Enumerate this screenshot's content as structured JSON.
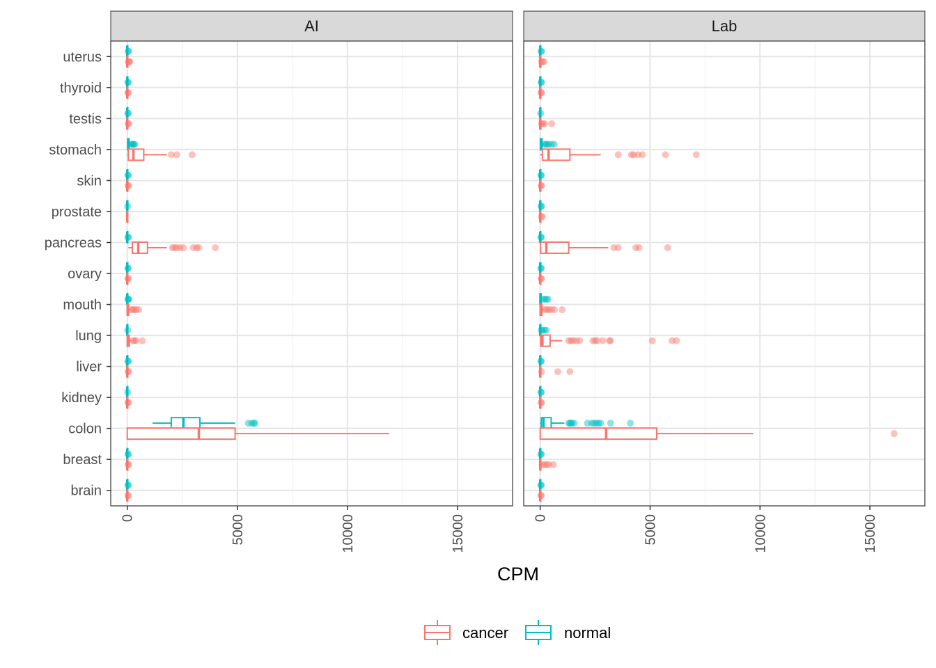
{
  "chart_data": {
    "type": "boxplot",
    "orientation": "horizontal",
    "xlabel": "CPM",
    "xlim": [
      -750,
      17500
    ],
    "x_ticks": [
      0,
      5000,
      10000,
      15000
    ],
    "categories": [
      "uterus",
      "thyroid",
      "testis",
      "stomach",
      "skin",
      "prostate",
      "pancreas",
      "ovary",
      "mouth",
      "lung",
      "liver",
      "kidney",
      "colon",
      "breast",
      "brain"
    ],
    "grid": true,
    "legend_position": "bottom",
    "groups": [
      {
        "name": "cancer",
        "color": "#F8766D"
      },
      {
        "name": "normal",
        "color": "#00BFC4"
      }
    ],
    "panels": [
      {
        "title": "AI",
        "boxes": [
          {
            "category": "uterus",
            "group": "normal",
            "q1": 0,
            "median": 0,
            "q3": 10,
            "whisker_low": 0,
            "whisker_high": 30,
            "outliers": [
              40,
              60
            ]
          },
          {
            "category": "uterus",
            "group": "cancer",
            "q1": 0,
            "median": 0,
            "q3": 15,
            "whisker_low": 0,
            "whisker_high": 40,
            "outliers": [
              50,
              80,
              120
            ]
          },
          {
            "category": "thyroid",
            "group": "normal",
            "q1": 0,
            "median": 0,
            "q3": 10,
            "whisker_low": 0,
            "whisker_high": 20,
            "outliers": [
              30,
              50
            ]
          },
          {
            "category": "thyroid",
            "group": "cancer",
            "q1": 0,
            "median": 0,
            "q3": 10,
            "whisker_low": 0,
            "whisker_high": 20,
            "outliers": [
              30,
              40
            ]
          },
          {
            "category": "testis",
            "group": "normal",
            "q1": 0,
            "median": 0,
            "q3": 10,
            "whisker_low": 0,
            "whisker_high": 20,
            "outliers": [
              30,
              50
            ]
          },
          {
            "category": "testis",
            "group": "cancer",
            "q1": 0,
            "median": 0,
            "q3": 15,
            "whisker_low": 0,
            "whisker_high": 30,
            "outliers": [
              40,
              60
            ]
          },
          {
            "category": "stomach",
            "group": "normal",
            "q1": 20,
            "median": 40,
            "q3": 80,
            "whisker_low": 0,
            "whisker_high": 150,
            "outliers": [
              180,
              220,
              260,
              300,
              340
            ]
          },
          {
            "category": "stomach",
            "group": "cancer",
            "q1": 50,
            "median": 280,
            "q3": 750,
            "whisker_low": 0,
            "whisker_high": 1800,
            "outliers": [
              2000,
              2250,
              2950
            ]
          },
          {
            "category": "skin",
            "group": "normal",
            "q1": 0,
            "median": 0,
            "q3": 10,
            "whisker_low": 0,
            "whisker_high": 20,
            "outliers": [
              30,
              50
            ]
          },
          {
            "category": "skin",
            "group": "cancer",
            "q1": 0,
            "median": 0,
            "q3": 10,
            "whisker_low": 0,
            "whisker_high": 30,
            "outliers": [
              40,
              60
            ]
          },
          {
            "category": "prostate",
            "group": "normal",
            "q1": 0,
            "median": 0,
            "q3": 5,
            "whisker_low": 0,
            "whisker_high": 10,
            "outliers": [
              20
            ]
          },
          {
            "category": "prostate",
            "group": "cancer",
            "q1": 0,
            "median": 0,
            "q3": 5,
            "whisker_low": 0,
            "whisker_high": 10,
            "outliers": []
          },
          {
            "category": "pancreas",
            "group": "normal",
            "q1": 0,
            "median": 0,
            "q3": 10,
            "whisker_low": 0,
            "whisker_high": 20,
            "outliers": [
              30,
              50
            ]
          },
          {
            "category": "pancreas",
            "group": "cancer",
            "q1": 230,
            "median": 500,
            "q3": 920,
            "whisker_low": 50,
            "whisker_high": 1800,
            "outliers": [
              2050,
              2150,
              2250,
              2400,
              2550,
              3000,
              3150,
              3250,
              4000
            ]
          },
          {
            "category": "ovary",
            "group": "normal",
            "q1": 0,
            "median": 0,
            "q3": 10,
            "whisker_low": 0,
            "whisker_high": 20,
            "outliers": [
              30,
              40
            ]
          },
          {
            "category": "ovary",
            "group": "cancer",
            "q1": 0,
            "median": 0,
            "q3": 10,
            "whisker_low": 0,
            "whisker_high": 20,
            "outliers": [
              30,
              50
            ]
          },
          {
            "category": "mouth",
            "group": "normal",
            "q1": 0,
            "median": 0,
            "q3": 10,
            "whisker_low": 0,
            "whisker_high": 20,
            "outliers": [
              30,
              50,
              70
            ]
          },
          {
            "category": "mouth",
            "group": "cancer",
            "q1": 0,
            "median": 20,
            "q3": 60,
            "whisker_low": 0,
            "whisker_high": 150,
            "outliers": [
              180,
              250,
              320,
              400,
              520
            ]
          },
          {
            "category": "lung",
            "group": "normal",
            "q1": 0,
            "median": 0,
            "q3": 5,
            "whisker_low": 0,
            "whisker_high": 10,
            "outliers": [
              20
            ]
          },
          {
            "category": "lung",
            "group": "cancer",
            "q1": 0,
            "median": 30,
            "q3": 90,
            "whisker_low": 0,
            "whisker_high": 200,
            "outliers": [
              250,
              330,
              400,
              680
            ]
          },
          {
            "category": "liver",
            "group": "normal",
            "q1": 0,
            "median": 0,
            "q3": 10,
            "whisker_low": 0,
            "whisker_high": 20,
            "outliers": [
              30,
              50
            ]
          },
          {
            "category": "liver",
            "group": "cancer",
            "q1": 0,
            "median": 0,
            "q3": 10,
            "whisker_low": 0,
            "whisker_high": 30,
            "outliers": [
              40,
              60
            ]
          },
          {
            "category": "kidney",
            "group": "normal",
            "q1": 0,
            "median": 0,
            "q3": 5,
            "whisker_low": 0,
            "whisker_high": 10,
            "outliers": [
              20
            ]
          },
          {
            "category": "kidney",
            "group": "cancer",
            "q1": 0,
            "median": 0,
            "q3": 10,
            "whisker_low": 0,
            "whisker_high": 20,
            "outliers": [
              30,
              50
            ]
          },
          {
            "category": "colon",
            "group": "normal",
            "q1": 2000,
            "median": 2550,
            "q3": 3300,
            "whisker_low": 1150,
            "whisker_high": 4900,
            "outliers": [
              5500,
              5650,
              5750,
              5800
            ]
          },
          {
            "category": "colon",
            "group": "cancer",
            "q1": 0,
            "median": 3250,
            "q3": 4900,
            "whisker_low": 0,
            "whisker_high": 11900,
            "outliers": []
          },
          {
            "category": "breast",
            "group": "normal",
            "q1": 0,
            "median": 0,
            "q3": 10,
            "whisker_low": 0,
            "whisker_high": 20,
            "outliers": [
              30,
              50
            ]
          },
          {
            "category": "breast",
            "group": "cancer",
            "q1": 0,
            "median": 0,
            "q3": 10,
            "whisker_low": 0,
            "whisker_high": 30,
            "outliers": [
              40,
              60
            ]
          },
          {
            "category": "brain",
            "group": "normal",
            "q1": 0,
            "median": 0,
            "q3": 10,
            "whisker_low": 0,
            "whisker_high": 20,
            "outliers": [
              30,
              50
            ]
          },
          {
            "category": "brain",
            "group": "cancer",
            "q1": 0,
            "median": 0,
            "q3": 10,
            "whisker_low": 0,
            "whisker_high": 20,
            "outliers": [
              30,
              50
            ]
          }
        ]
      },
      {
        "title": "Lab",
        "boxes": [
          {
            "category": "uterus",
            "group": "normal",
            "q1": 0,
            "median": 0,
            "q3": 10,
            "whisker_low": 0,
            "whisker_high": 30,
            "outliers": [
              40,
              60
            ]
          },
          {
            "category": "uterus",
            "group": "cancer",
            "q1": 0,
            "median": 0,
            "q3": 15,
            "whisker_low": 0,
            "whisker_high": 40,
            "outliers": [
              60,
              100,
              180
            ]
          },
          {
            "category": "thyroid",
            "group": "normal",
            "q1": 0,
            "median": 0,
            "q3": 10,
            "whisker_low": 0,
            "whisker_high": 30,
            "outliers": [
              40,
              60
            ]
          },
          {
            "category": "thyroid",
            "group": "cancer",
            "q1": 0,
            "median": 0,
            "q3": 10,
            "whisker_low": 0,
            "whisker_high": 30,
            "outliers": [
              40,
              60
            ]
          },
          {
            "category": "testis",
            "group": "normal",
            "q1": 0,
            "median": 0,
            "q3": 5,
            "whisker_low": 0,
            "whisker_high": 10,
            "outliers": [
              20
            ]
          },
          {
            "category": "testis",
            "group": "cancer",
            "q1": 0,
            "median": 0,
            "q3": 20,
            "whisker_low": 0,
            "whisker_high": 40,
            "outliers": [
              60,
              120,
              200,
              520
            ]
          },
          {
            "category": "stomach",
            "group": "normal",
            "q1": 10,
            "median": 30,
            "q3": 80,
            "whisker_low": 0,
            "whisker_high": 160,
            "outliers": [
              200,
              250,
              320,
              400,
              520,
              640
            ]
          },
          {
            "category": "stomach",
            "group": "cancer",
            "q1": 100,
            "median": 380,
            "q3": 1350,
            "whisker_low": 0,
            "whisker_high": 2750,
            "outliers": [
              3550,
              4150,
              4250,
              4450,
              4650,
              5700,
              7100
            ]
          },
          {
            "category": "skin",
            "group": "normal",
            "q1": 0,
            "median": 0,
            "q3": 10,
            "whisker_low": 0,
            "whisker_high": 20,
            "outliers": [
              30,
              50
            ]
          },
          {
            "category": "skin",
            "group": "cancer",
            "q1": 0,
            "median": 0,
            "q3": 10,
            "whisker_low": 0,
            "whisker_high": 30,
            "outliers": [
              40,
              60
            ]
          },
          {
            "category": "prostate",
            "group": "normal",
            "q1": 0,
            "median": 0,
            "q3": 10,
            "whisker_low": 0,
            "whisker_high": 30,
            "outliers": [
              40,
              60
            ]
          },
          {
            "category": "prostate",
            "group": "cancer",
            "q1": 0,
            "median": 0,
            "q3": 10,
            "whisker_low": 0,
            "whisker_high": 30,
            "outliers": [
              50,
              100
            ]
          },
          {
            "category": "pancreas",
            "group": "normal",
            "q1": 0,
            "median": 0,
            "q3": 10,
            "whisker_low": 0,
            "whisker_high": 20,
            "outliers": [
              30,
              50
            ]
          },
          {
            "category": "pancreas",
            "group": "cancer",
            "q1": 20,
            "median": 280,
            "q3": 1300,
            "whisker_low": 0,
            "whisker_high": 3100,
            "outliers": [
              3350,
              3550,
              4350,
              4500,
              5800
            ]
          },
          {
            "category": "ovary",
            "group": "normal",
            "q1": 0,
            "median": 0,
            "q3": 10,
            "whisker_low": 0,
            "whisker_high": 20,
            "outliers": [
              30,
              50
            ]
          },
          {
            "category": "ovary",
            "group": "cancer",
            "q1": 0,
            "median": 0,
            "q3": 10,
            "whisker_low": 0,
            "whisker_high": 30,
            "outliers": [
              40,
              60
            ]
          },
          {
            "category": "mouth",
            "group": "normal",
            "q1": 0,
            "median": 10,
            "q3": 40,
            "whisker_low": 0,
            "whisker_high": 80,
            "outliers": [
              120,
              200,
              280,
              360
            ]
          },
          {
            "category": "mouth",
            "group": "cancer",
            "q1": 0,
            "median": 20,
            "q3": 80,
            "whisker_low": 0,
            "whisker_high": 180,
            "outliers": [
              220,
              300,
              400,
              520,
              650,
              1000
            ]
          },
          {
            "category": "lung",
            "group": "normal",
            "q1": 0,
            "median": 0,
            "q3": 10,
            "whisker_low": 0,
            "whisker_high": 30,
            "outliers": [
              50,
              100,
              200,
              280
            ]
          },
          {
            "category": "lung",
            "group": "cancer",
            "q1": 20,
            "median": 100,
            "q3": 450,
            "whisker_low": 0,
            "whisker_high": 1000,
            "outliers": [
              1300,
              1400,
              1500,
              1650,
              1800,
              2400,
              2500,
              2600,
              2850,
              3150,
              3200,
              5100,
              6000,
              6200
            ]
          },
          {
            "category": "liver",
            "group": "normal",
            "q1": 0,
            "median": 0,
            "q3": 10,
            "whisker_low": 0,
            "whisker_high": 20,
            "outliers": [
              30,
              50
            ]
          },
          {
            "category": "liver",
            "group": "cancer",
            "q1": 0,
            "median": 0,
            "q3": 20,
            "whisker_low": 0,
            "whisker_high": 40,
            "outliers": [
              60,
              800,
              1350
            ]
          },
          {
            "category": "kidney",
            "group": "normal",
            "q1": 0,
            "median": 0,
            "q3": 10,
            "whisker_low": 0,
            "whisker_high": 20,
            "outliers": [
              30,
              50
            ]
          },
          {
            "category": "kidney",
            "group": "cancer",
            "q1": 0,
            "median": 0,
            "q3": 10,
            "whisker_low": 0,
            "whisker_high": 30,
            "outliers": [
              40,
              60
            ]
          },
          {
            "category": "colon",
            "group": "normal",
            "q1": 50,
            "median": 150,
            "q3": 500,
            "whisker_low": 0,
            "whisker_high": 1100,
            "outliers": [
              1300,
              1350,
              1400,
              1450,
              1550,
              2150,
              2350,
              2450,
              2550,
              2650,
              2750,
              3200,
              4100
            ]
          },
          {
            "category": "colon",
            "group": "cancer",
            "q1": 0,
            "median": 3000,
            "q3": 5300,
            "whisker_low": 0,
            "whisker_high": 9700,
            "outliers": [
              16100
            ]
          },
          {
            "category": "breast",
            "group": "normal",
            "q1": 0,
            "median": 0,
            "q3": 10,
            "whisker_low": 0,
            "whisker_high": 20,
            "outliers": [
              30,
              50
            ]
          },
          {
            "category": "breast",
            "group": "cancer",
            "q1": 0,
            "median": 0,
            "q3": 20,
            "whisker_low": 0,
            "whisker_high": 60,
            "outliers": [
              100,
              200,
              300,
              400,
              600
            ]
          },
          {
            "category": "brain",
            "group": "normal",
            "q1": 0,
            "median": 0,
            "q3": 10,
            "whisker_low": 0,
            "whisker_high": 20,
            "outliers": [
              30,
              50
            ]
          },
          {
            "category": "brain",
            "group": "cancer",
            "q1": 0,
            "median": 0,
            "q3": 10,
            "whisker_low": 0,
            "whisker_high": 20,
            "outliers": [
              30,
              50
            ]
          }
        ]
      }
    ]
  }
}
